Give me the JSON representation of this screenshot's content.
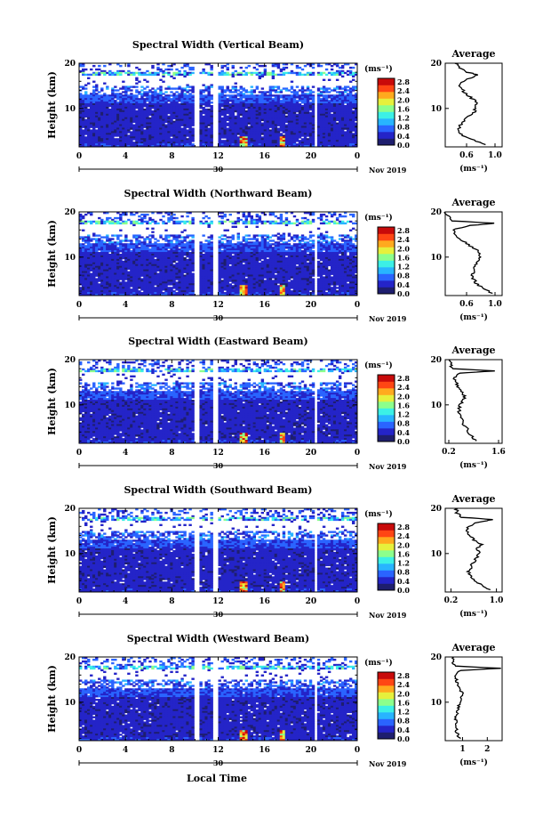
{
  "xlabel": "Local Time",
  "day_label": "30",
  "month_label": "Nov 2019",
  "unit_label": "(ms⁻¹)",
  "avg_title": "Average",
  "avg_xlabel": "(ms⁻¹)",
  "ylabel": "Height (km)",
  "colorbar_ticks": [
    "2.8",
    "2.4",
    "2.0",
    "1.6",
    "1.2",
    "0.8",
    "0.4",
    "0.0"
  ],
  "colormap": [
    "#1e1e6e",
    "#2424c8",
    "#2a64ff",
    "#28b4ff",
    "#3cf0e6",
    "#8cff8c",
    "#e6f03c",
    "#ffaa1e",
    "#ff4614",
    "#c80a0a"
  ],
  "chart_data": [
    {
      "type": "heatmap",
      "title": "Spectral Width (Vertical Beam)",
      "xlabel": "Local Time",
      "ylabel": "Height (km)",
      "x_ticks": [
        "0",
        "4",
        "8",
        "12",
        "16",
        "20",
        "0"
      ],
      "y_ticks": [
        "20",
        "10"
      ],
      "xlim": [
        0,
        24
      ],
      "ylim": [
        1.5,
        20
      ],
      "color_range": [
        0,
        3.0
      ],
      "avg": {
        "title": "Average",
        "x_ticks": [
          "0.6",
          "1.0"
        ],
        "xlim": [
          0.3,
          1.1
        ],
        "profile": [
          [
            2,
            0.85
          ],
          [
            3,
            0.7
          ],
          [
            4,
            0.55
          ],
          [
            5,
            0.5
          ],
          [
            6,
            0.5
          ],
          [
            7,
            0.55
          ],
          [
            8,
            0.6
          ],
          [
            9,
            0.7
          ],
          [
            10,
            0.72
          ],
          [
            11,
            0.75
          ],
          [
            12,
            0.7
          ],
          [
            13,
            0.6
          ],
          [
            14,
            0.55
          ],
          [
            15,
            0.5
          ],
          [
            16,
            0.55
          ],
          [
            17,
            0.7
          ],
          [
            17.5,
            0.75
          ],
          [
            18,
            0.6
          ],
          [
            19,
            0.5
          ],
          [
            20,
            0.45
          ]
        ]
      }
    },
    {
      "type": "heatmap",
      "title": "Spectral Width (Northward Beam)",
      "xlabel": "Local Time",
      "ylabel": "Height (km)",
      "x_ticks": [
        "0",
        "4",
        "8",
        "12",
        "16",
        "20",
        "0"
      ],
      "y_ticks": [
        "20",
        "10"
      ],
      "xlim": [
        0,
        24
      ],
      "ylim": [
        1.5,
        20
      ],
      "color_range": [
        0,
        3.0
      ],
      "avg": {
        "title": "Average",
        "x_ticks": [
          "0.6",
          "1.0"
        ],
        "xlim": [
          0.3,
          1.1
        ],
        "profile": [
          [
            2,
            0.95
          ],
          [
            3,
            0.85
          ],
          [
            4,
            0.75
          ],
          [
            5,
            0.7
          ],
          [
            6,
            0.68
          ],
          [
            7,
            0.7
          ],
          [
            8,
            0.72
          ],
          [
            9,
            0.75
          ],
          [
            10,
            0.8
          ],
          [
            11,
            0.78
          ],
          [
            12,
            0.7
          ],
          [
            13,
            0.6
          ],
          [
            14,
            0.5
          ],
          [
            15,
            0.45
          ],
          [
            16,
            0.4
          ],
          [
            17,
            0.65
          ],
          [
            17.5,
            1.0
          ],
          [
            18,
            0.4
          ],
          [
            19,
            0.35
          ],
          [
            20,
            0.3
          ]
        ]
      }
    },
    {
      "type": "heatmap",
      "title": "Spectral Width (Eastward Beam)",
      "xlabel": "Local Time",
      "ylabel": "Height (km)",
      "x_ticks": [
        "0",
        "4",
        "8",
        "12",
        "16",
        "20",
        "0"
      ],
      "y_ticks": [
        "20",
        "10"
      ],
      "xlim": [
        0,
        24
      ],
      "ylim": [
        1.5,
        20
      ],
      "color_range": [
        0,
        3.0
      ],
      "avg": {
        "title": "Average",
        "x_ticks": [
          "0.2",
          "1.6"
        ],
        "xlim": [
          0.1,
          1.7
        ],
        "profile": [
          [
            2,
            0.95
          ],
          [
            3,
            0.85
          ],
          [
            4,
            0.75
          ],
          [
            5,
            0.7
          ],
          [
            6,
            0.6
          ],
          [
            7,
            0.55
          ],
          [
            8,
            0.5
          ],
          [
            9,
            0.48
          ],
          [
            10,
            0.5
          ],
          [
            11,
            0.6
          ],
          [
            12,
            0.65
          ],
          [
            13,
            0.55
          ],
          [
            14,
            0.45
          ],
          [
            15,
            0.4
          ],
          [
            16,
            0.35
          ],
          [
            17,
            0.5
          ],
          [
            17.5,
            1.5
          ],
          [
            18,
            0.3
          ],
          [
            19,
            0.25
          ],
          [
            20,
            0.2
          ]
        ]
      }
    },
    {
      "type": "heatmap",
      "title": "Spectral Width (Southward Beam)",
      "xlabel": "Local Time",
      "ylabel": "Height (km)",
      "x_ticks": [
        "0",
        "4",
        "8",
        "12",
        "16",
        "20",
        "0"
      ],
      "y_ticks": [
        "20",
        "10"
      ],
      "xlim": [
        0,
        24
      ],
      "ylim": [
        1.5,
        20
      ],
      "color_range": [
        0,
        3.0
      ],
      "avg": {
        "title": "Average",
        "x_ticks": [
          "0.2",
          "1.0"
        ],
        "xlim": [
          0.1,
          1.1
        ],
        "profile": [
          [
            2,
            0.9
          ],
          [
            3,
            0.75
          ],
          [
            4,
            0.6
          ],
          [
            5,
            0.55
          ],
          [
            6,
            0.5
          ],
          [
            7,
            0.55
          ],
          [
            8,
            0.6
          ],
          [
            9,
            0.65
          ],
          [
            10,
            0.7
          ],
          [
            11,
            0.65
          ],
          [
            12,
            0.75
          ],
          [
            13,
            0.6
          ],
          [
            14,
            0.55
          ],
          [
            15,
            0.45
          ],
          [
            16,
            0.5
          ],
          [
            17,
            0.7
          ],
          [
            17.5,
            0.95
          ],
          [
            18,
            0.4
          ],
          [
            19,
            0.3
          ],
          [
            20,
            0.3
          ]
        ]
      }
    },
    {
      "type": "heatmap",
      "title": "Spectral Width (Westward Beam)",
      "xlabel": "Local Time",
      "ylabel": "Height (km)",
      "x_ticks": [
        "0",
        "4",
        "8",
        "12",
        "16",
        "20",
        "0"
      ],
      "y_ticks": [
        "20",
        "10"
      ],
      "xlim": [
        0,
        24
      ],
      "ylim": [
        1.5,
        20
      ],
      "color_range": [
        0,
        3.0
      ],
      "avg": {
        "title": "Average",
        "x_ticks": [
          "1",
          "2"
        ],
        "xlim": [
          0.3,
          2.6
        ],
        "profile": [
          [
            2,
            0.9
          ],
          [
            3,
            0.8
          ],
          [
            4,
            0.75
          ],
          [
            5,
            0.7
          ],
          [
            6,
            0.72
          ],
          [
            7,
            0.75
          ],
          [
            8,
            0.8
          ],
          [
            9,
            0.85
          ],
          [
            10,
            0.9
          ],
          [
            11,
            0.95
          ],
          [
            12,
            1.0
          ],
          [
            13,
            0.9
          ],
          [
            14,
            0.8
          ],
          [
            15,
            0.75
          ],
          [
            16,
            0.7
          ],
          [
            17,
            0.9
          ],
          [
            17.5,
            2.5
          ],
          [
            18,
            0.7
          ],
          [
            19,
            0.6
          ],
          [
            20,
            0.6
          ]
        ]
      }
    }
  ]
}
